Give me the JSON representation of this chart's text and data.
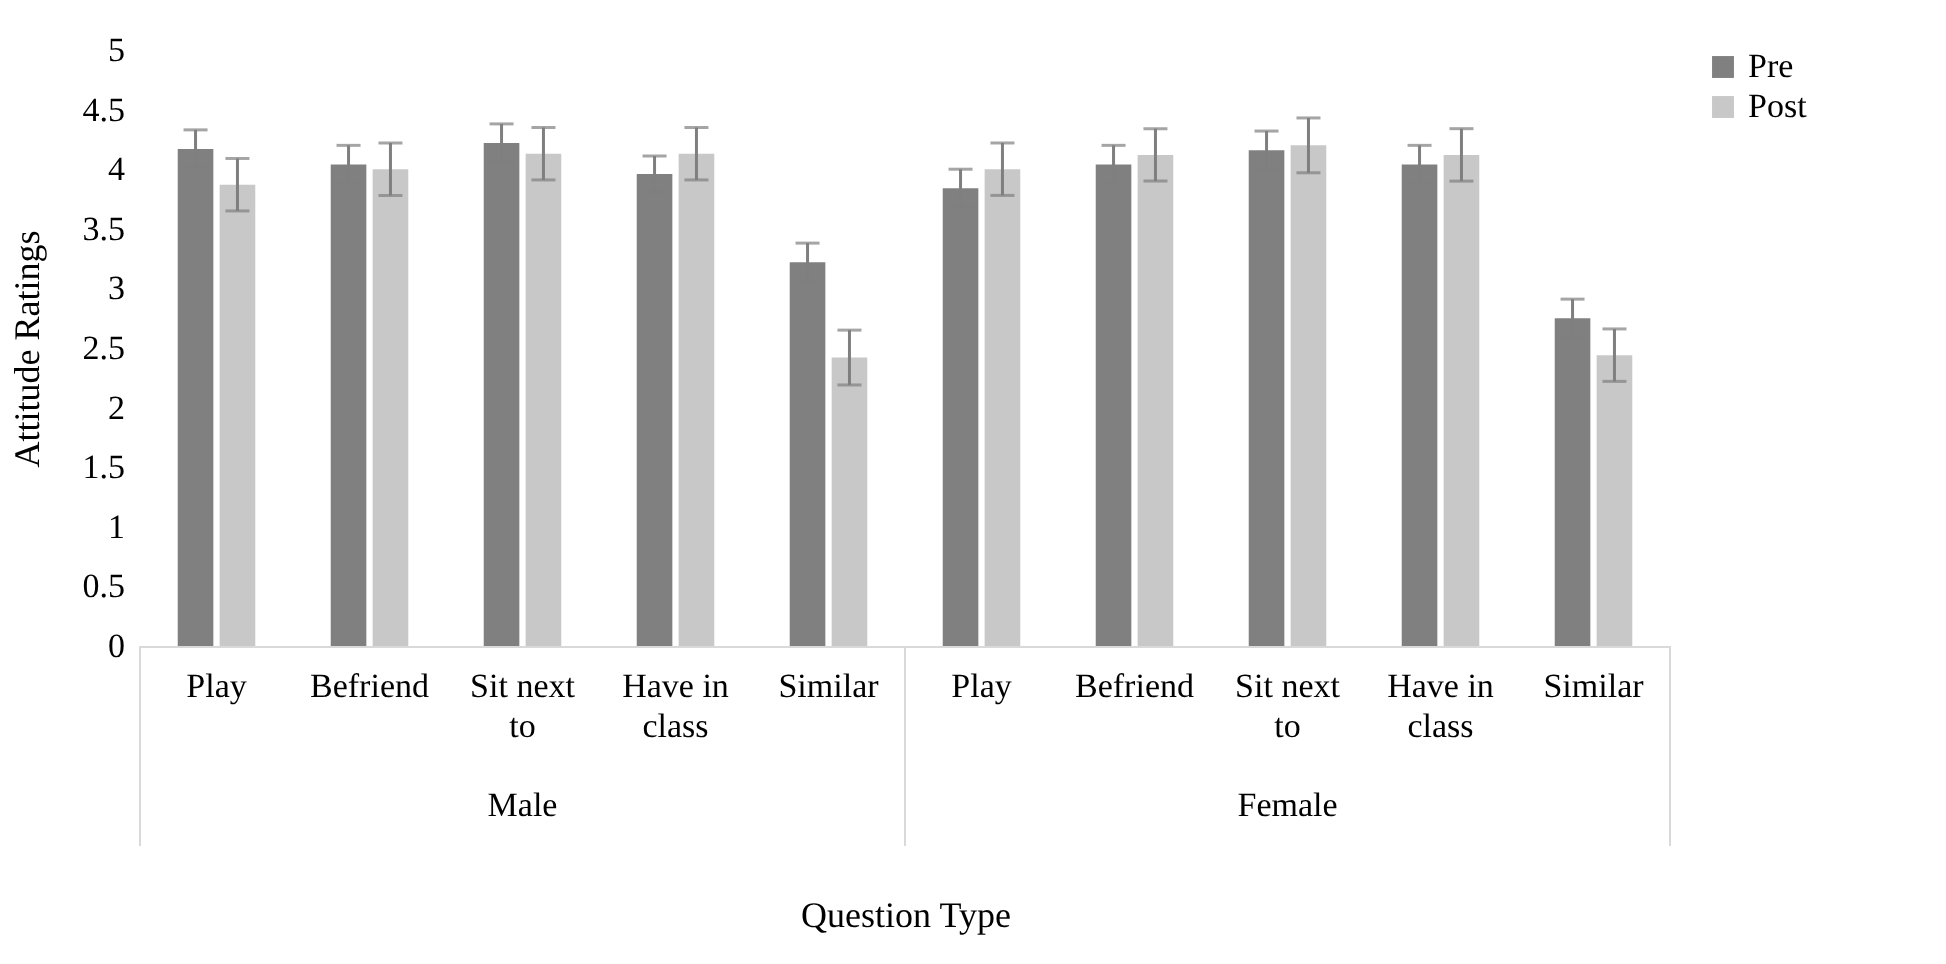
{
  "chart_data": {
    "type": "bar",
    "categories": [
      "Play",
      "Befriend",
      "Sit next to",
      "Have in class",
      "Similar",
      "Play",
      "Befriend",
      "Sit next to",
      "Have in class",
      "Similar"
    ],
    "series": [
      {
        "name": "Pre",
        "color": "#808080",
        "values": [
          4.17,
          4.04,
          4.22,
          3.96,
          3.22,
          3.84,
          4.04,
          4.16,
          4.04,
          2.75
        ],
        "errors": [
          0.16,
          0.16,
          0.16,
          0.15,
          0.16,
          0.16,
          0.16,
          0.16,
          0.16,
          0.16
        ]
      },
      {
        "name": "Post",
        "color": "#c8c8c8",
        "values": [
          3.87,
          4.0,
          4.13,
          4.13,
          2.42,
          4.0,
          4.12,
          4.2,
          4.12,
          2.44
        ],
        "errors": [
          0.22,
          0.22,
          0.22,
          0.22,
          0.23,
          0.22,
          0.22,
          0.23,
          0.22,
          0.22
        ]
      }
    ],
    "xlabel": "Question Type",
    "ylabel": "Attitude Ratings",
    "annotations": [
      "Male",
      "Female"
    ],
    "ylim": [
      0,
      5
    ],
    "yticks": [
      0,
      0.5,
      1,
      1.5,
      2,
      2.5,
      3,
      3.5,
      4,
      4.5,
      5
    ],
    "grid": false,
    "legend": "top right"
  }
}
